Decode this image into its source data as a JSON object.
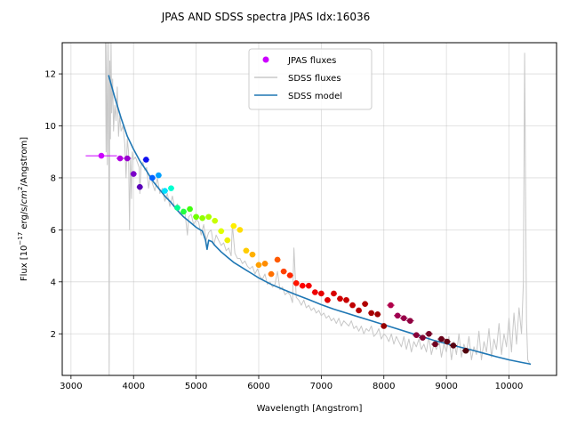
{
  "chart_data": {
    "type": "scatter",
    "title": "JPAS AND SDSS spectra JPAS Idx:16036",
    "xlabel": "Wavelength [Angstrom]",
    "ylabel_parts": {
      "pre": "Flux [10",
      "sup1": "−17",
      "mid": " erg/s/",
      "cm": "cm",
      "sup2": "2",
      "post": "/Angstrom]"
    },
    "xlim": [
      2860,
      10760
    ],
    "ylim": [
      0.4,
      13.2
    ],
    "xticks": [
      3000,
      4000,
      5000,
      6000,
      7000,
      8000,
      9000,
      10000
    ],
    "yticks": [
      2,
      4,
      6,
      8,
      10,
      12
    ],
    "grid": true,
    "legend": {
      "placement": "top-center",
      "entries": [
        {
          "label": "JPAS fluxes",
          "marker": "dot",
          "color": "#cc00ff"
        },
        {
          "label": "SDSS fluxes",
          "marker": "line",
          "color": "#c8c8c8"
        },
        {
          "label": "SDSS model",
          "marker": "line",
          "color": "#1f77b4"
        }
      ]
    },
    "series": [
      {
        "name": "JPAS fluxes",
        "kind": "points",
        "points": [
          {
            "x": 3485,
            "y": 8.85,
            "xerr": 250,
            "color": "#cc00ff"
          },
          {
            "x": 3785,
            "y": 8.75,
            "xerr": 60,
            "color": "#b000e0"
          },
          {
            "x": 3900,
            "y": 8.75,
            "xerr": 60,
            "color": "#9a00d0"
          },
          {
            "x": 4000,
            "y": 8.15,
            "xerr": 50,
            "color": "#7a00c8"
          },
          {
            "x": 4100,
            "y": 7.65,
            "xerr": 50,
            "color": "#5a00b8"
          },
          {
            "x": 4200,
            "y": 8.7,
            "xerr": 50,
            "color": "#1010f0"
          },
          {
            "x": 4300,
            "y": 8.0,
            "xerr": 50,
            "color": "#0060ff"
          },
          {
            "x": 4400,
            "y": 8.1,
            "xerr": 50,
            "color": "#00a0ff"
          },
          {
            "x": 4500,
            "y": 7.5,
            "xerr": 50,
            "color": "#00e0ff"
          },
          {
            "x": 4600,
            "y": 7.6,
            "xerr": 50,
            "color": "#00ffd0"
          },
          {
            "x": 4700,
            "y": 6.85,
            "xerr": 50,
            "color": "#00ff90"
          },
          {
            "x": 4800,
            "y": 6.7,
            "xerr": 50,
            "color": "#20ff40"
          },
          {
            "x": 4900,
            "y": 6.8,
            "xerr": 50,
            "color": "#40ff10"
          },
          {
            "x": 5000,
            "y": 6.5,
            "xerr": 50,
            "color": "#70ff00"
          },
          {
            "x": 5100,
            "y": 6.45,
            "xerr": 50,
            "color": "#90ff00"
          },
          {
            "x": 5200,
            "y": 6.5,
            "xerr": 50,
            "color": "#aaff00"
          },
          {
            "x": 5300,
            "y": 6.35,
            "xerr": 50,
            "color": "#c8ff00"
          },
          {
            "x": 5400,
            "y": 5.95,
            "xerr": 50,
            "color": "#dfff00"
          },
          {
            "x": 5500,
            "y": 5.6,
            "xerr": 50,
            "color": "#eef000"
          },
          {
            "x": 5600,
            "y": 6.15,
            "xerr": 50,
            "color": "#ffee00"
          },
          {
            "x": 5700,
            "y": 6.0,
            "xerr": 50,
            "color": "#ffdd00"
          },
          {
            "x": 5800,
            "y": 5.2,
            "xerr": 50,
            "color": "#ffcc00"
          },
          {
            "x": 5900,
            "y": 5.05,
            "xerr": 50,
            "color": "#ffb000"
          },
          {
            "x": 6000,
            "y": 4.65,
            "xerr": 50,
            "color": "#ffa000"
          },
          {
            "x": 6100,
            "y": 4.7,
            "xerr": 50,
            "color": "#ff8c00"
          },
          {
            "x": 6200,
            "y": 4.3,
            "xerr": 50,
            "color": "#ff7000"
          },
          {
            "x": 6300,
            "y": 4.85,
            "xerr": 50,
            "color": "#ff5a00"
          },
          {
            "x": 6400,
            "y": 4.4,
            "xerr": 50,
            "color": "#ff4000"
          },
          {
            "x": 6500,
            "y": 4.25,
            "xerr": 50,
            "color": "#ff2800"
          },
          {
            "x": 6600,
            "y": 3.95,
            "xerr": 50,
            "color": "#ff1400"
          },
          {
            "x": 6700,
            "y": 3.85,
            "xerr": 50,
            "color": "#ff0000"
          },
          {
            "x": 6800,
            "y": 3.85,
            "xerr": 50,
            "color": "#f40000"
          },
          {
            "x": 6900,
            "y": 3.6,
            "xerr": 50,
            "color": "#ee0000"
          },
          {
            "x": 7000,
            "y": 3.55,
            "xerr": 50,
            "color": "#e60000"
          },
          {
            "x": 7100,
            "y": 3.3,
            "xerr": 50,
            "color": "#e00000"
          },
          {
            "x": 7200,
            "y": 3.55,
            "xerr": 50,
            "color": "#d80000"
          },
          {
            "x": 7300,
            "y": 3.35,
            "xerr": 50,
            "color": "#d00000"
          },
          {
            "x": 7400,
            "y": 3.3,
            "xerr": 50,
            "color": "#c80000"
          },
          {
            "x": 7500,
            "y": 3.1,
            "xerr": 50,
            "color": "#c00000"
          },
          {
            "x": 7600,
            "y": 2.9,
            "xerr": 50,
            "color": "#b80000"
          },
          {
            "x": 7700,
            "y": 3.15,
            "xerr": 50,
            "color": "#b00000"
          },
          {
            "x": 7800,
            "y": 2.8,
            "xerr": 50,
            "color": "#a80000"
          },
          {
            "x": 7900,
            "y": 2.75,
            "xerr": 50,
            "color": "#a00000"
          },
          {
            "x": 8000,
            "y": 2.3,
            "xerr": 50,
            "color": "#980000"
          },
          {
            "x": 8110,
            "y": 3.1,
            "xerr": 60,
            "color": "#b0004a"
          },
          {
            "x": 8220,
            "y": 2.7,
            "xerr": 60,
            "color": "#a00050"
          },
          {
            "x": 8320,
            "y": 2.6,
            "xerr": 60,
            "color": "#980048"
          },
          {
            "x": 8420,
            "y": 2.5,
            "xerr": 60,
            "color": "#900040"
          },
          {
            "x": 8520,
            "y": 1.95,
            "xerr": 60,
            "color": "#880038"
          },
          {
            "x": 8620,
            "y": 1.85,
            "xerr": 60,
            "color": "#800030"
          },
          {
            "x": 8720,
            "y": 2.0,
            "xerr": 60,
            "color": "#780028"
          },
          {
            "x": 8820,
            "y": 1.6,
            "xerr": 60,
            "color": "#700020"
          },
          {
            "x": 8920,
            "y": 1.8,
            "xerr": 60,
            "color": "#680018"
          },
          {
            "x": 9010,
            "y": 1.7,
            "xerr": 60,
            "color": "#600014"
          },
          {
            "x": 9110,
            "y": 1.55,
            "xerr": 60,
            "color": "#580010"
          },
          {
            "x": 9310,
            "y": 1.35,
            "xerr": 60,
            "color": "#50000c"
          }
        ]
      },
      {
        "name": "SDSS fluxes",
        "kind": "line",
        "color": "#c8c8c8",
        "x": [
          3550,
          3560,
          3570,
          3580,
          3590,
          3600,
          3610,
          3620,
          3630,
          3640,
          3650,
          3665,
          3680,
          3700,
          3720,
          3740,
          3760,
          3780,
          3800,
          3830,
          3860,
          3880,
          3900,
          3920,
          3935,
          3950,
          3968,
          3980,
          4000,
          4030,
          4060,
          4090,
          4101,
          4120,
          4150,
          4180,
          4210,
          4240,
          4270,
          4300,
          4340,
          4380,
          4420,
          4460,
          4500,
          4540,
          4580,
          4620,
          4660,
          4700,
          4740,
          4780,
          4820,
          4861,
          4880,
          4920,
          4960,
          5000,
          5040,
          5080,
          5120,
          5160,
          5200,
          5240,
          5280,
          5320,
          5360,
          5400,
          5440,
          5480,
          5520,
          5560,
          5580,
          5620,
          5660,
          5700,
          5740,
          5780,
          5820,
          5860,
          5900,
          5940,
          5980,
          6020,
          6060,
          6100,
          6140,
          6180,
          6220,
          6260,
          6300,
          6340,
          6380,
          6420,
          6460,
          6500,
          6540,
          6563,
          6600,
          6640,
          6680,
          6720,
          6760,
          6800,
          6840,
          6880,
          6920,
          6960,
          7000,
          7040,
          7080,
          7120,
          7160,
          7200,
          7240,
          7280,
          7320,
          7360,
          7400,
          7440,
          7480,
          7520,
          7560,
          7600,
          7640,
          7680,
          7720,
          7760,
          7800,
          7840,
          7880,
          7920,
          7960,
          8000,
          8040,
          8080,
          8120,
          8160,
          8200,
          8240,
          8280,
          8320,
          8360,
          8400,
          8440,
          8480,
          8520,
          8560,
          8600,
          8640,
          8680,
          8720,
          8760,
          8800,
          8840,
          8880,
          8920,
          8960,
          9000,
          9040,
          9080,
          9120,
          9160,
          9200,
          9240,
          9280,
          9320,
          9360,
          9400,
          9440,
          9480,
          9520,
          9560,
          9600,
          9640,
          9680,
          9720,
          9760,
          9800,
          9840,
          9880,
          9920,
          9960,
          10000,
          10040,
          10080,
          10120,
          10160,
          10200,
          10230,
          10250,
          10280,
          10300,
          10340
        ],
        "y": [
          13.2,
          9.0,
          13.2,
          8.5,
          11.0,
          13.2,
          0.4,
          12.5,
          9.5,
          13.2,
          10.5,
          11.8,
          9.8,
          10.8,
          10.2,
          11.5,
          9.6,
          10.4,
          9.8,
          10.0,
          9.3,
          8.0,
          9.5,
          9.0,
          6.0,
          8.8,
          7.2,
          9.0,
          8.7,
          8.8,
          8.6,
          8.4,
          7.4,
          8.5,
          8.6,
          8.3,
          8.4,
          7.6,
          8.1,
          7.8,
          7.5,
          8.0,
          7.4,
          7.6,
          7.1,
          7.4,
          6.9,
          7.3,
          6.8,
          7.0,
          6.6,
          6.8,
          6.7,
          5.8,
          6.5,
          6.6,
          6.2,
          6.4,
          6.3,
          5.8,
          6.2,
          5.6,
          5.9,
          6.0,
          5.4,
          5.8,
          5.6,
          5.4,
          5.5,
          5.2,
          5.3,
          5.0,
          6.2,
          5.1,
          4.9,
          4.9,
          4.7,
          4.8,
          4.6,
          4.5,
          4.6,
          4.3,
          4.5,
          4.2,
          4.1,
          4.3,
          3.9,
          4.0,
          3.8,
          3.9,
          4.4,
          3.7,
          3.8,
          3.5,
          3.6,
          3.5,
          3.2,
          5.3,
          3.4,
          3.3,
          3.1,
          3.3,
          3.0,
          3.1,
          2.9,
          3.0,
          2.8,
          2.9,
          2.7,
          2.8,
          2.6,
          2.7,
          2.5,
          2.6,
          2.4,
          2.6,
          2.3,
          2.5,
          2.4,
          2.3,
          2.5,
          2.2,
          2.3,
          2.1,
          2.3,
          2.0,
          2.2,
          2.1,
          2.3,
          1.9,
          2.0,
          2.2,
          1.8,
          2.0,
          1.9,
          1.7,
          2.0,
          1.6,
          1.9,
          1.7,
          1.5,
          1.9,
          1.4,
          1.8,
          1.3,
          1.7,
          1.5,
          1.8,
          1.4,
          1.6,
          1.3,
          1.9,
          1.2,
          1.6,
          1.4,
          1.8,
          1.1,
          1.6,
          1.3,
          1.9,
          1.0,
          1.7,
          1.2,
          2.0,
          1.1,
          1.6,
          1.3,
          1.9,
          1.0,
          1.5,
          1.2,
          2.1,
          1.0,
          1.7,
          1.3,
          2.2,
          1.1,
          1.8,
          1.4,
          2.4,
          1.2,
          2.0,
          1.5,
          2.6,
          1.3,
          2.8,
          1.6,
          3.0,
          2.0,
          4.0,
          12.8,
          2.5,
          1.0,
          0.8
        ]
      },
      {
        "name": "SDSS model",
        "kind": "line",
        "color": "#1f77b4",
        "x": [
          3600,
          3700,
          3800,
          3900,
          4000,
          4100,
          4200,
          4300,
          4400,
          4500,
          4600,
          4700,
          4800,
          4900,
          5000,
          5100,
          5150,
          5175,
          5200,
          5250,
          5300,
          5400,
          5500,
          5600,
          5700,
          5800,
          5900,
          6000,
          6200,
          6400,
          6600,
          6800,
          7000,
          7200,
          7400,
          7600,
          7800,
          8000,
          8200,
          8400,
          8600,
          8800,
          9000,
          9200,
          9400,
          9600,
          9800,
          10000,
          10200,
          10350
        ],
        "y": [
          11.95,
          11.1,
          10.3,
          9.6,
          9.1,
          8.65,
          8.3,
          7.9,
          7.6,
          7.3,
          7.05,
          6.75,
          6.5,
          6.3,
          6.1,
          5.95,
          5.6,
          5.25,
          5.6,
          5.55,
          5.4,
          5.15,
          4.95,
          4.75,
          4.6,
          4.45,
          4.3,
          4.15,
          3.9,
          3.7,
          3.5,
          3.32,
          3.12,
          2.95,
          2.8,
          2.65,
          2.5,
          2.35,
          2.2,
          2.05,
          1.9,
          1.75,
          1.62,
          1.5,
          1.38,
          1.25,
          1.12,
          1.0,
          0.9,
          0.83
        ]
      }
    ]
  }
}
